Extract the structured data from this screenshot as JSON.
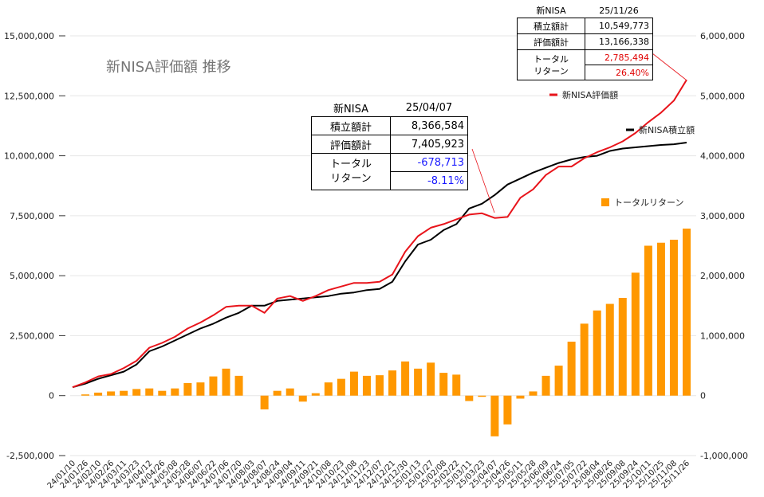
{
  "chart_data": {
    "type": "combo",
    "title": "新NISA評価額 推移",
    "left_axis": {
      "ticks": [
        "15,000,000",
        "12,500,000",
        "10,000,000",
        "7,500,000",
        "5,000,000",
        "2,500,000",
        "0",
        "-2,500,000"
      ],
      "range": [
        -2500000,
        15000000
      ]
    },
    "right_axis": {
      "ticks": [
        "6,000,000",
        "5,000,000",
        "4,000,000",
        "3,000,000",
        "2,000,000",
        "1,000,000",
        "0",
        "-1,000,000"
      ],
      "range": [
        -1000000,
        6000000
      ]
    },
    "x_labels": [
      "24/01/10",
      "24/01/26",
      "24/02/10",
      "24/02/26",
      "24/03/11",
      "24/03/23",
      "24/04/12",
      "24/04/26",
      "24/05/08",
      "24/05/28",
      "24/06/07",
      "24/06/22",
      "24/07/06",
      "24/07/20",
      "24/08/03",
      "24/08/07",
      "24/08/24",
      "24/09/04",
      "24/09/11",
      "24/09/21",
      "24/10/08",
      "24/10/23",
      "24/11/08",
      "24/11/23",
      "24/12/07",
      "24/12/21",
      "24/12/30",
      "25/01/13",
      "25/01/27",
      "25/02/08",
      "25/02/22",
      "25/03/11",
      "25/03/23",
      "25/04/07",
      "25/04/26",
      "25/05/11",
      "25/05/28",
      "25/06/09",
      "25/06/24",
      "25/07/05",
      "25/07/22",
      "25/08/04",
      "25/08/26",
      "25/09/08",
      "25/09/24",
      "25/10/11",
      "25/10/25",
      "25/11/08",
      "25/11/26"
    ],
    "series": [
      {
        "name": "新NISA評価額",
        "axis": "left",
        "kind": "line",
        "color": "#e8141b",
        "values": [
          350000,
          550000,
          800000,
          900000,
          1150000,
          1450000,
          2000000,
          2200000,
          2450000,
          2800000,
          3050000,
          3350000,
          3700000,
          3750000,
          3750000,
          3450000,
          4050000,
          4150000,
          3950000,
          4150000,
          4400000,
          4550000,
          4700000,
          4700000,
          4750000,
          5050000,
          6000000,
          6650000,
          7000000,
          7150000,
          7350000,
          7550000,
          7600000,
          7405923,
          7450000,
          8250000,
          8600000,
          9200000,
          9550000,
          9550000,
          9900000,
          10150000,
          10350000,
          10600000,
          10950000,
          11400000,
          11800000,
          12300000,
          13166338
        ]
      },
      {
        "name": "新NISA積立額",
        "axis": "left",
        "kind": "line",
        "color": "#000000",
        "values": [
          350000,
          500000,
          700000,
          850000,
          1000000,
          1300000,
          1850000,
          2050000,
          2300000,
          2550000,
          2800000,
          3000000,
          3250000,
          3450000,
          3750000,
          3750000,
          3950000,
          4000000,
          4050000,
          4100000,
          4150000,
          4250000,
          4300000,
          4400000,
          4450000,
          4750000,
          5600000,
          6300000,
          6500000,
          6900000,
          7150000,
          7800000,
          8000000,
          8366584,
          8800000,
          9050000,
          9300000,
          9500000,
          9700000,
          9850000,
          9950000,
          10000000,
          10200000,
          10300000,
          10350000,
          10400000,
          10450000,
          10480000,
          10549773
        ]
      },
      {
        "name": "トータルリターン",
        "axis": "right",
        "kind": "bar",
        "color": "#ff9800",
        "values": [
          0,
          20000,
          50000,
          70000,
          80000,
          110000,
          120000,
          80000,
          120000,
          210000,
          220000,
          320000,
          450000,
          330000,
          0,
          -230000,
          80000,
          120000,
          -100000,
          40000,
          220000,
          280000,
          400000,
          330000,
          340000,
          420000,
          570000,
          450000,
          550000,
          380000,
          350000,
          -90000,
          -20000,
          -678713,
          -480000,
          -50000,
          70000,
          330000,
          500000,
          900000,
          1200000,
          1420000,
          1530000,
          1630000,
          2050000,
          2500000,
          2550000,
          2600000,
          2785494
        ]
      }
    ],
    "legend": [
      {
        "label": "新NISA評価額",
        "placement": "right"
      },
      {
        "label": "新NISA積立額",
        "placement": "right"
      },
      {
        "label": "トータルリターン",
        "placement": "right"
      }
    ],
    "grid": true
  },
  "boxes": [
    {
      "title": "新NISA",
      "date": "25/04/07",
      "rows": [
        {
          "label": "積立額計",
          "value": "8,366,584"
        },
        {
          "label": "評価額計",
          "value": "7,405,923"
        }
      ],
      "return_label_1": "トータル",
      "return_label_2": "リターン",
      "return_value": "-678,713",
      "return_pct": "-8.11%"
    },
    {
      "title": "新NISA",
      "date": "25/11/26",
      "rows": [
        {
          "label": "積立額計",
          "value": "10,549,773"
        },
        {
          "label": "評価額計",
          "value": "13,166,338"
        }
      ],
      "return_label_1": "トータル",
      "return_label_2": "リターン",
      "return_value": "2,785,494",
      "return_pct": "26.40%"
    }
  ]
}
